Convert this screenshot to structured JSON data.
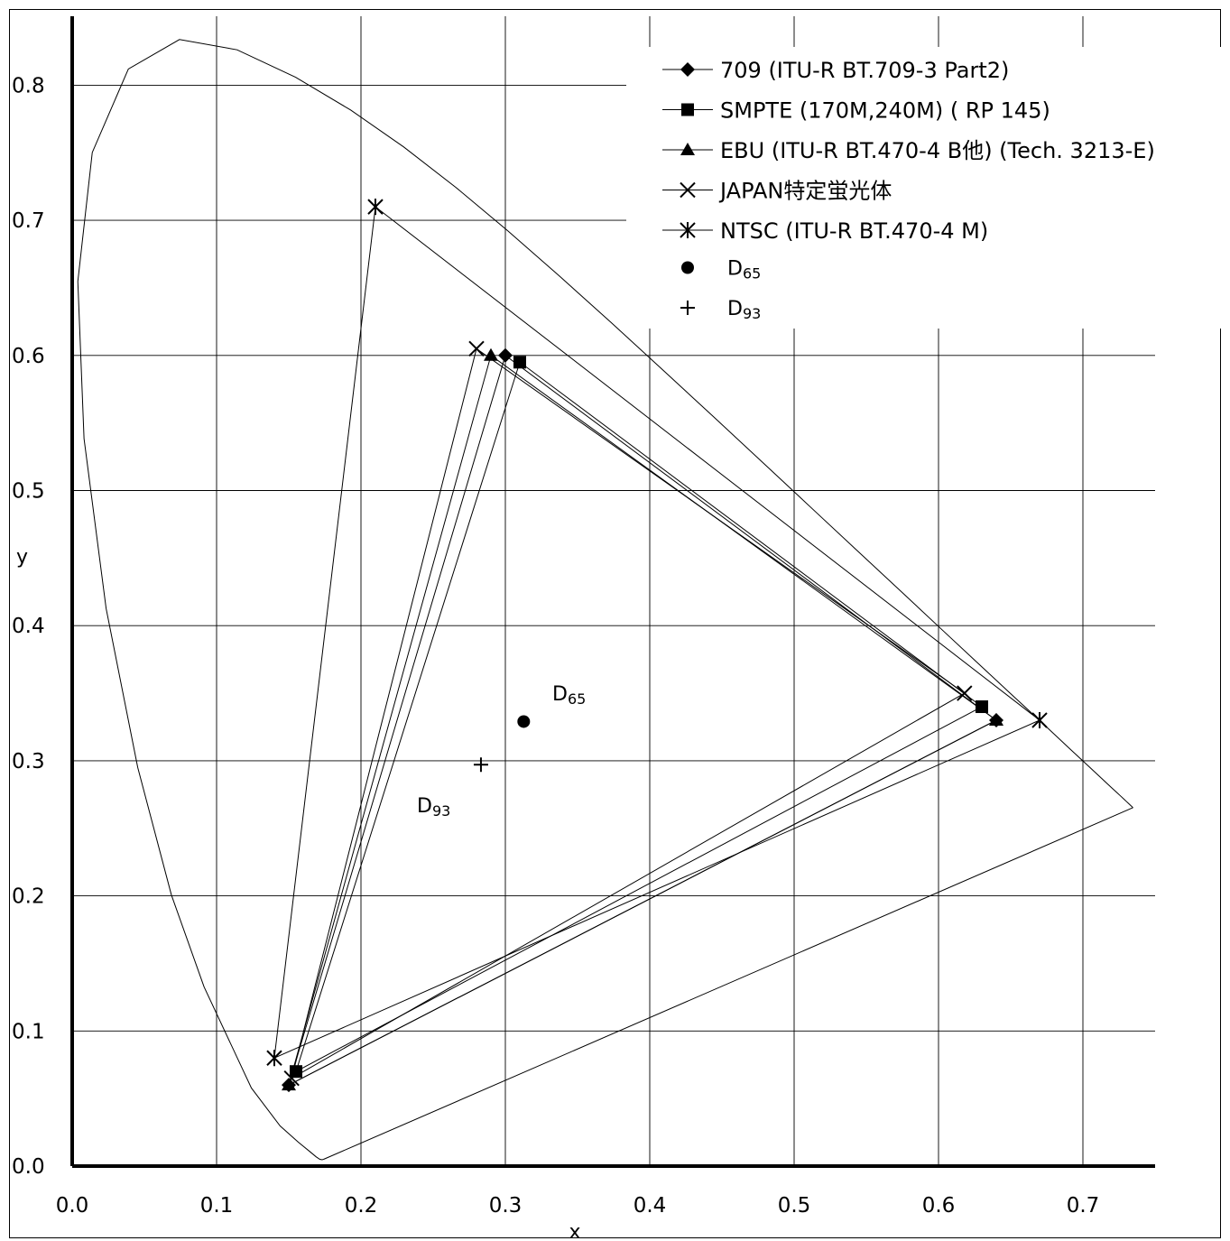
{
  "chart_data": {
    "type": "scatter",
    "xlabel": "x",
    "ylabel": "y",
    "xlim": [
      0.0,
      0.75
    ],
    "ylim": [
      0.0,
      0.85
    ],
    "x_ticks": [
      "0.0",
      "0.1",
      "0.2",
      "0.3",
      "0.4",
      "0.5",
      "0.6",
      "0.7"
    ],
    "y_ticks": [
      "0.0",
      "0.1",
      "0.2",
      "0.3",
      "0.4",
      "0.5",
      "0.6",
      "0.7",
      "0.8"
    ],
    "grid": true,
    "legend_position": "top-right",
    "spectral_locus": [
      [
        0.1741,
        0.005
      ],
      [
        0.1738,
        0.0049
      ],
      [
        0.1733,
        0.0048
      ],
      [
        0.1726,
        0.0048
      ],
      [
        0.1714,
        0.0051
      ],
      [
        0.1689,
        0.0069
      ],
      [
        0.1644,
        0.0109
      ],
      [
        0.1566,
        0.0177
      ],
      [
        0.144,
        0.0297
      ],
      [
        0.1241,
        0.0578
      ],
      [
        0.0913,
        0.1327
      ],
      [
        0.0687,
        0.2007
      ],
      [
        0.0454,
        0.295
      ],
      [
        0.0235,
        0.4127
      ],
      [
        0.0082,
        0.5384
      ],
      [
        0.0039,
        0.6548
      ],
      [
        0.0139,
        0.7502
      ],
      [
        0.0389,
        0.812
      ],
      [
        0.0743,
        0.8338
      ],
      [
        0.1142,
        0.8262
      ],
      [
        0.1547,
        0.8059
      ],
      [
        0.1929,
        0.7816
      ],
      [
        0.2296,
        0.7543
      ],
      [
        0.2658,
        0.7243
      ],
      [
        0.3016,
        0.6923
      ],
      [
        0.3373,
        0.6589
      ],
      [
        0.3731,
        0.6245
      ],
      [
        0.4087,
        0.5896
      ],
      [
        0.4441,
        0.5547
      ],
      [
        0.4788,
        0.5202
      ],
      [
        0.5125,
        0.4866
      ],
      [
        0.5448,
        0.4544
      ],
      [
        0.5752,
        0.4242
      ],
      [
        0.6029,
        0.3965
      ],
      [
        0.627,
        0.3725
      ],
      [
        0.6482,
        0.3514
      ],
      [
        0.6658,
        0.334
      ],
      [
        0.6801,
        0.3197
      ],
      [
        0.6915,
        0.3083
      ],
      [
        0.7006,
        0.2993
      ],
      [
        0.7079,
        0.292
      ],
      [
        0.714,
        0.2859
      ],
      [
        0.719,
        0.2809
      ],
      [
        0.723,
        0.277
      ],
      [
        0.726,
        0.274
      ],
      [
        0.7283,
        0.2717
      ],
      [
        0.73,
        0.27
      ],
      [
        0.7347,
        0.2653
      ]
    ],
    "purple_line": [
      [
        0.7347,
        0.2653
      ],
      [
        0.1741,
        0.005
      ]
    ],
    "series": [
      {
        "name": "709 (ITU-R BT.709-3 Part2)",
        "marker": "diamond",
        "points": [
          [
            0.64,
            0.33
          ],
          [
            0.3,
            0.6
          ],
          [
            0.15,
            0.06
          ]
        ]
      },
      {
        "name": "SMPTE (170M,240M) ( RP 145)",
        "marker": "square",
        "points": [
          [
            0.63,
            0.34
          ],
          [
            0.31,
            0.595
          ],
          [
            0.155,
            0.07
          ]
        ]
      },
      {
        "name": "EBU (ITU-R BT.470-4 B他) (Tech. 3213-E)",
        "marker": "triangle",
        "points": [
          [
            0.64,
            0.33
          ],
          [
            0.29,
            0.6
          ],
          [
            0.15,
            0.06
          ]
        ]
      },
      {
        "name": "JAPAN特定蛍光体",
        "marker": "x",
        "points": [
          [
            0.618,
            0.35
          ],
          [
            0.28,
            0.605
          ],
          [
            0.152,
            0.065
          ]
        ]
      },
      {
        "name": "NTSC (ITU-R BT.470-4 M)",
        "marker": "star",
        "points": [
          [
            0.67,
            0.33
          ],
          [
            0.21,
            0.71
          ],
          [
            0.14,
            0.08
          ]
        ]
      }
    ],
    "white_points": [
      {
        "name": "D65",
        "label_main": "D",
        "label_sub": "65",
        "marker": "circle",
        "x": 0.3127,
        "y": 0.329
      },
      {
        "name": "D93",
        "label_main": "D",
        "label_sub": "93",
        "marker": "plus",
        "x": 0.2831,
        "y": 0.2971
      }
    ]
  }
}
